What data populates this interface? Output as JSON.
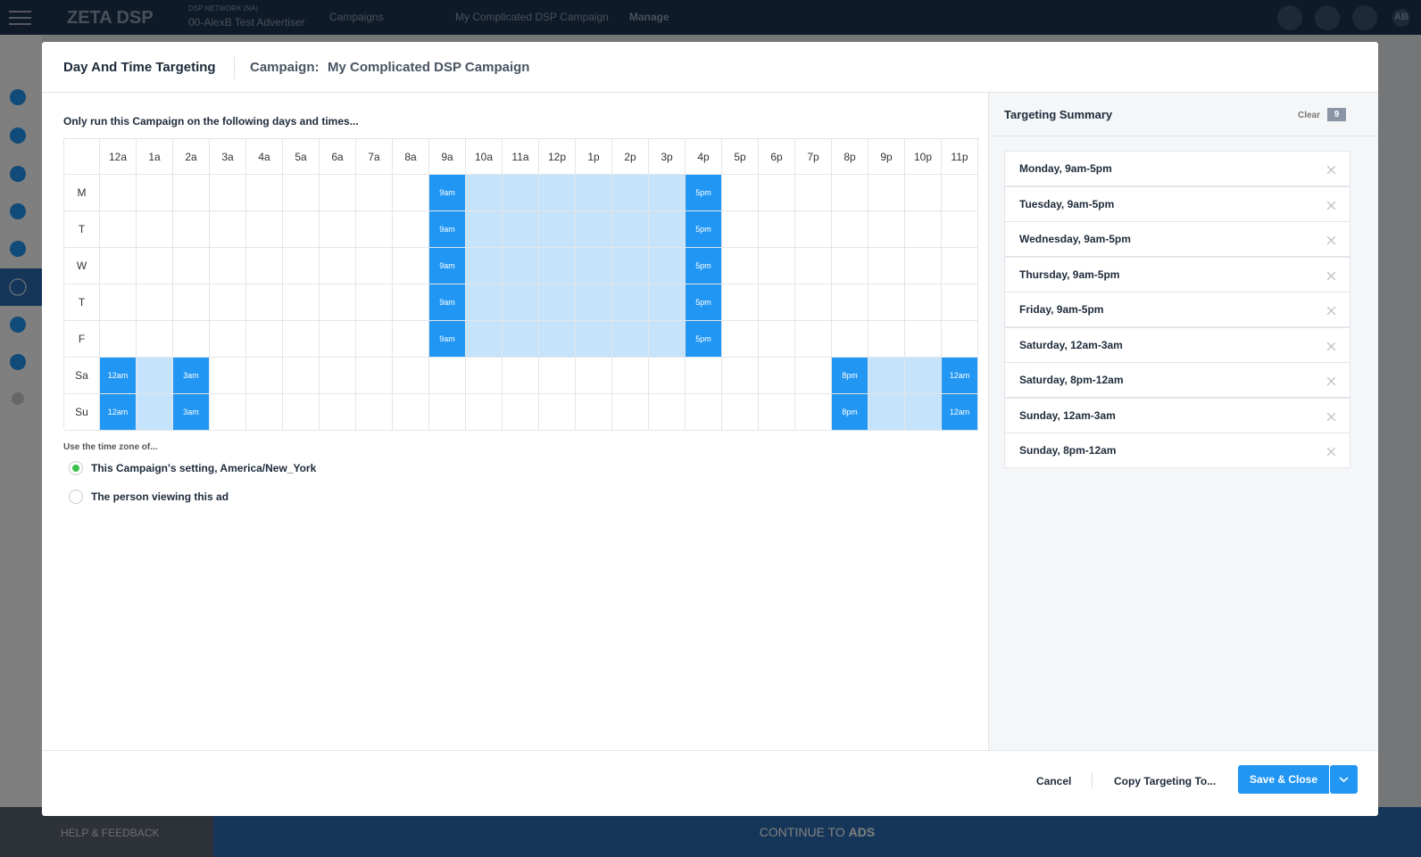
{
  "topbar": {
    "logo": "ZETA DSP",
    "network": "DSP NETWORK (NA)",
    "advertiser": "00-AlexB Test Advertiser",
    "crumbs": [
      "Campaigns",
      "My Complicated DSP Campaign",
      "Manage"
    ],
    "avatar": "AB"
  },
  "modal": {
    "title": "Day And Time Targeting",
    "campaign_label": "Campaign:",
    "campaign_name": "My Complicated DSP Campaign",
    "instructions": "Only run this Campaign on the following days and times...",
    "grid": {
      "hours": [
        "12a",
        "1a",
        "2a",
        "3a",
        "4a",
        "5a",
        "6a",
        "7a",
        "8a",
        "9a",
        "10a",
        "11a",
        "12p",
        "1p",
        "2p",
        "3p",
        "4p",
        "5p",
        "6p",
        "7p",
        "8p",
        "9p",
        "10p",
        "11p"
      ],
      "rows": [
        {
          "day": "M",
          "ranges": [
            {
              "start": 9,
              "end": 16,
              "start_label": "9am",
              "end_label": "5pm"
            }
          ]
        },
        {
          "day": "T",
          "ranges": [
            {
              "start": 9,
              "end": 16,
              "start_label": "9am",
              "end_label": "5pm"
            }
          ]
        },
        {
          "day": "W",
          "ranges": [
            {
              "start": 9,
              "end": 16,
              "start_label": "9am",
              "end_label": "5pm"
            }
          ]
        },
        {
          "day": "T",
          "ranges": [
            {
              "start": 9,
              "end": 16,
              "start_label": "9am",
              "end_label": "5pm"
            }
          ]
        },
        {
          "day": "F",
          "ranges": [
            {
              "start": 9,
              "end": 16,
              "start_label": "9am",
              "end_label": "5pm"
            }
          ]
        },
        {
          "day": "Sa",
          "ranges": [
            {
              "start": 0,
              "end": 2,
              "start_label": "12am",
              "end_label": "3am"
            },
            {
              "start": 20,
              "end": 23,
              "start_label": "8pm",
              "end_label": "12am"
            }
          ]
        },
        {
          "day": "Su",
          "ranges": [
            {
              "start": 0,
              "end": 2,
              "start_label": "12am",
              "end_label": "3am"
            },
            {
              "start": 20,
              "end": 23,
              "start_label": "8pm",
              "end_label": "12am"
            }
          ]
        }
      ]
    },
    "timezone": {
      "label": "Use the time zone of...",
      "options": [
        "This Campaign's setting, America/New_York",
        "The person viewing this ad"
      ],
      "selected": 0
    },
    "summary": {
      "title": "Targeting Summary",
      "clear": "Clear",
      "count": "9",
      "items": [
        "Monday, 9am-5pm",
        "Tuesday, 9am-5pm",
        "Wednesday, 9am-5pm",
        "Thursday, 9am-5pm",
        "Friday, 9am-5pm",
        "Saturday, 12am-3am",
        "Saturday, 8pm-12am",
        "Sunday, 12am-3am",
        "Sunday, 8pm-12am"
      ]
    },
    "footer": {
      "cancel": "Cancel",
      "copy": "Copy Targeting To...",
      "save": "Save & Close"
    }
  },
  "background": {
    "help": "HELP & FEEDBACK",
    "continue_prefix": "CONTINUE TO",
    "continue_target": "ADS"
  }
}
